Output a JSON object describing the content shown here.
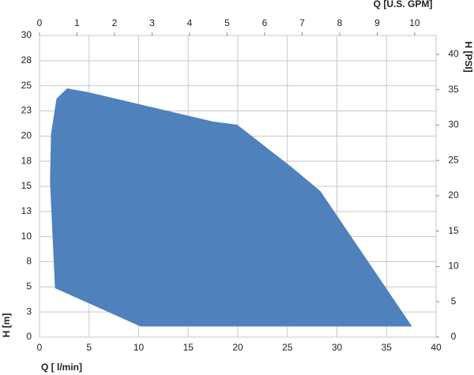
{
  "chart_data": {
    "type": "area",
    "x_label": "Q [ l/min]",
    "x2_label": "Q  [U.S. GPM]",
    "y_label": "H [m]",
    "y2_label": "H [PSI]",
    "series": [
      {
        "color": "#4f81bd",
        "x": [
          1.6,
          10.2,
          37.5,
          28.3,
          25.5,
          19.9,
          17.5,
          4.8,
          2.8,
          1.75,
          1.2,
          1.1
        ],
        "y": [
          4.9,
          1.1,
          1.1,
          14.5,
          16.8,
          21.1,
          21.4,
          24.35,
          24.7,
          23.7,
          20.2,
          15.5
        ]
      }
    ],
    "xlim": [
      0,
      40
    ],
    "xticks": [
      0,
      5,
      10,
      15,
      20,
      25,
      30,
      35,
      40
    ],
    "x2lim": [
      0,
      10.57
    ],
    "x2ticks": [
      0,
      1,
      2,
      3,
      4,
      5,
      6,
      7,
      8,
      9,
      10
    ],
    "ylim": [
      0,
      30
    ],
    "yticks": [
      0,
      {
        "value": 2.5,
        "label": "3"
      },
      5,
      {
        "value": 7.5,
        "label": "8"
      },
      10,
      {
        "value": 12.5,
        "label": "13"
      },
      15,
      {
        "value": 17.5,
        "label": "18"
      },
      20,
      {
        "value": 22.5,
        "label": "23"
      },
      25,
      {
        "value": 27.5,
        "label": "28"
      },
      30
    ],
    "y2lim": [
      0,
      42.67
    ],
    "y2ticks": [
      0,
      5,
      10,
      15,
      20,
      25,
      30,
      35,
      40
    ],
    "grid": true
  }
}
